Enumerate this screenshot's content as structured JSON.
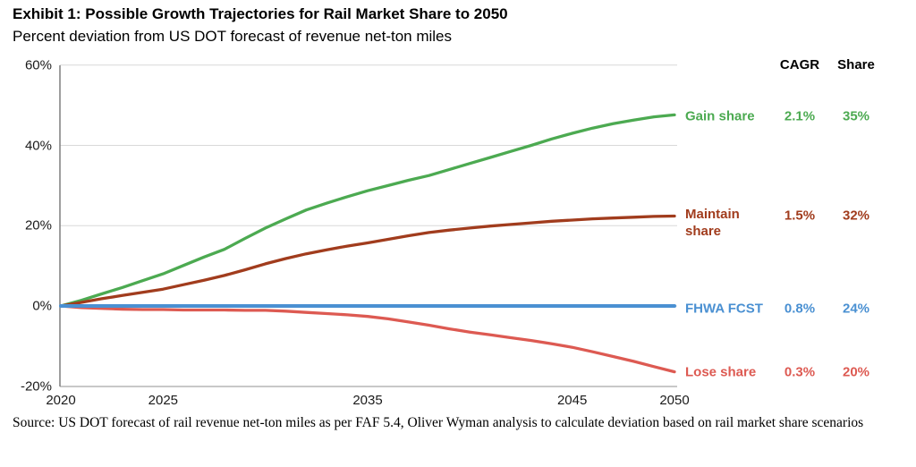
{
  "title": "Exhibit 1: Possible Growth Trajectories for Rail Market Share to 2050",
  "subtitle": "Percent deviation from US DOT forecast of revenue net-ton miles",
  "source": "Source: US DOT forecast of rail revenue net-ton miles as per FAF 5.4, Oliver Wyman analysis to calculate deviation based on rail market share scenarios",
  "legend": {
    "cagr_header": "CAGR",
    "share_header": "Share"
  },
  "colors": {
    "gain": "#4caa51",
    "maintain": "#a13c1d",
    "fhwa": "#4a90d2",
    "lose": "#dd5a52",
    "gridline": "#d9d9d9",
    "axis": "#7f7f7f"
  },
  "chart_data": {
    "type": "line",
    "title": "Exhibit 1: Possible Growth Trajectories for Rail Market Share to 2050",
    "ylabel": "Percent deviation from US DOT forecast of revenue net-ton miles",
    "xlim": [
      2020,
      2050
    ],
    "ylim": [
      -20,
      60
    ],
    "x_ticks": [
      2020,
      2025,
      2035,
      2045,
      2050
    ],
    "y_ticks": [
      60,
      40,
      20,
      0,
      -20
    ],
    "y_tick_suffix": "%",
    "grid": "horizontal",
    "legend_position": "right",
    "series": [
      {
        "name": "Gain share",
        "color": "#4caa51",
        "cagr": "2.1%",
        "share": "35%",
        "points": [
          [
            2020,
            0
          ],
          [
            2021,
            1.4
          ],
          [
            2022,
            3
          ],
          [
            2023,
            4.6
          ],
          [
            2024,
            6.3
          ],
          [
            2025,
            8
          ],
          [
            2026,
            10.1
          ],
          [
            2027,
            12.2
          ],
          [
            2028,
            14.1
          ],
          [
            2029,
            16.8
          ],
          [
            2030,
            19.4
          ],
          [
            2031,
            21.7
          ],
          [
            2032,
            23.9
          ],
          [
            2033,
            25.6
          ],
          [
            2034,
            27.2
          ],
          [
            2035,
            28.7
          ],
          [
            2036,
            30
          ],
          [
            2037,
            31.3
          ],
          [
            2038,
            32.5
          ],
          [
            2039,
            34
          ],
          [
            2040,
            35.5
          ],
          [
            2041,
            37
          ],
          [
            2042,
            38.5
          ],
          [
            2043,
            40
          ],
          [
            2044,
            41.6
          ],
          [
            2045,
            43
          ],
          [
            2046,
            44.3
          ],
          [
            2047,
            45.4
          ],
          [
            2048,
            46.3
          ],
          [
            2049,
            47.1
          ],
          [
            2050,
            47.6
          ]
        ]
      },
      {
        "name": "Maintain share",
        "color": "#a13c1d",
        "cagr": "1.5%",
        "share": "32%",
        "points": [
          [
            2020,
            0
          ],
          [
            2021,
            0.9
          ],
          [
            2022,
            1.8
          ],
          [
            2023,
            2.6
          ],
          [
            2024,
            3.4
          ],
          [
            2025,
            4.2
          ],
          [
            2026,
            5.3
          ],
          [
            2027,
            6.4
          ],
          [
            2028,
            7.6
          ],
          [
            2029,
            9
          ],
          [
            2030,
            10.5
          ],
          [
            2031,
            11.8
          ],
          [
            2032,
            13
          ],
          [
            2033,
            14
          ],
          [
            2034,
            14.9
          ],
          [
            2035,
            15.7
          ],
          [
            2036,
            16.6
          ],
          [
            2037,
            17.5
          ],
          [
            2038,
            18.3
          ],
          [
            2039,
            18.9
          ],
          [
            2040,
            19.4
          ],
          [
            2041,
            19.9
          ],
          [
            2042,
            20.3
          ],
          [
            2043,
            20.7
          ],
          [
            2044,
            21.1
          ],
          [
            2045,
            21.4
          ],
          [
            2046,
            21.7
          ],
          [
            2047,
            21.9
          ],
          [
            2048,
            22.1
          ],
          [
            2049,
            22.3
          ],
          [
            2050,
            22.4
          ]
        ]
      },
      {
        "name": "FHWA FCST",
        "color": "#4a90d2",
        "cagr": "0.8%",
        "share": "24%",
        "points": [
          [
            2020,
            0
          ],
          [
            2050,
            0
          ]
        ]
      },
      {
        "name": "Lose share",
        "color": "#dd5a52",
        "cagr": "0.3%",
        "share": "20%",
        "points": [
          [
            2020,
            0
          ],
          [
            2021,
            -0.4
          ],
          [
            2022,
            -0.6
          ],
          [
            2023,
            -0.8
          ],
          [
            2024,
            -0.9
          ],
          [
            2025,
            -0.9
          ],
          [
            2026,
            -1
          ],
          [
            2027,
            -1
          ],
          [
            2028,
            -1
          ],
          [
            2029,
            -1.1
          ],
          [
            2030,
            -1.1
          ],
          [
            2031,
            -1.3
          ],
          [
            2032,
            -1.6
          ],
          [
            2033,
            -1.9
          ],
          [
            2034,
            -2.2
          ],
          [
            2035,
            -2.6
          ],
          [
            2036,
            -3.2
          ],
          [
            2037,
            -4
          ],
          [
            2038,
            -4.8
          ],
          [
            2039,
            -5.7
          ],
          [
            2040,
            -6.5
          ],
          [
            2041,
            -7.2
          ],
          [
            2042,
            -7.9
          ],
          [
            2043,
            -8.6
          ],
          [
            2044,
            -9.4
          ],
          [
            2045,
            -10.3
          ],
          [
            2046,
            -11.4
          ],
          [
            2047,
            -12.6
          ],
          [
            2048,
            -13.8
          ],
          [
            2049,
            -15.1
          ],
          [
            2050,
            -16.4
          ]
        ]
      }
    ]
  }
}
